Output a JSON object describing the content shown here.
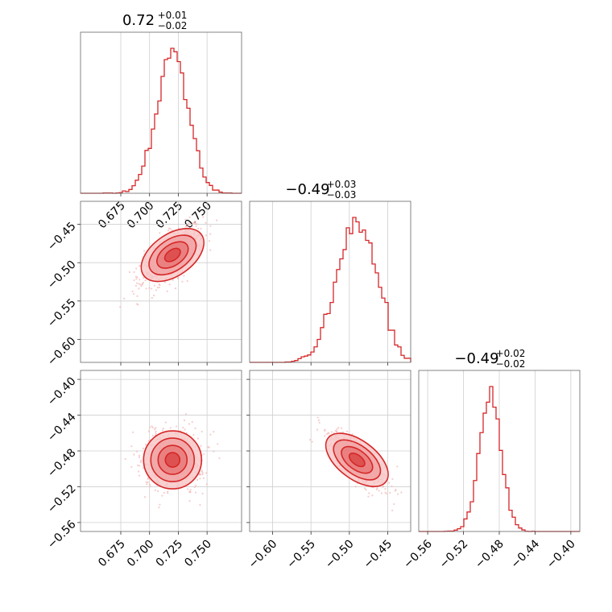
{
  "chart_data": [
    {
      "type": "histogram",
      "panel": "hist-0",
      "title": {
        "main": "0.72",
        "sup": "+0.01",
        "sub": "−0.02"
      },
      "xlim": [
        0.64,
        0.78
      ],
      "xticks": [
        0.675,
        0.7,
        0.725,
        0.75
      ],
      "xticklabels": [
        "0.675",
        "0.700",
        "0.725",
        "0.750"
      ],
      "center": 0.72,
      "spread": 0.0138,
      "peak": 0.03,
      "color": "#d62728",
      "grid": true
    },
    {
      "type": "scatter",
      "panel": "joint-1-0",
      "xlim": [
        0.64,
        0.78
      ],
      "ylim": [
        -0.63,
        -0.42
      ],
      "xticks": [
        0.675,
        0.7,
        0.725,
        0.75
      ],
      "yticks": [
        -0.45,
        -0.5,
        -0.55,
        -0.6
      ],
      "yticklabels": [
        "−0.45",
        "−0.50",
        "−0.55",
        "−0.60"
      ],
      "center": [
        0.72,
        -0.49
      ],
      "correlation": 0.7,
      "color": "#d62728",
      "grid": true
    },
    {
      "type": "histogram",
      "panel": "hist-1",
      "title": {
        "main": "−0.49",
        "sup": "+0.03",
        "sub": "−0.03"
      },
      "xlim": [
        -0.63,
        -0.42
      ],
      "xticks": [
        -0.6,
        -0.55,
        -0.5,
        -0.45
      ],
      "center": -0.49,
      "spread": 0.026,
      "peak": 0.016,
      "color": "#d62728",
      "grid": true
    },
    {
      "type": "scatter",
      "panel": "joint-2-0",
      "xlim": [
        0.64,
        0.78
      ],
      "ylim": [
        -0.57,
        -0.39
      ],
      "xticks": [
        0.675,
        0.7,
        0.725,
        0.75
      ],
      "xticklabels": [
        "0.675",
        "0.700",
        "0.725",
        "0.750"
      ],
      "yticks": [
        -0.4,
        -0.44,
        -0.48,
        -0.52,
        -0.56
      ],
      "yticklabels": [
        "−0.40",
        "−0.44",
        "−0.48",
        "−0.52",
        "−0.56"
      ],
      "center": [
        0.72,
        -0.49
      ],
      "correlation": 0.0,
      "color": "#d62728",
      "grid": true
    },
    {
      "type": "scatter",
      "panel": "joint-2-1",
      "xlim": [
        -0.63,
        -0.42
      ],
      "ylim": [
        -0.57,
        -0.39
      ],
      "xticks": [
        -0.6,
        -0.55,
        -0.5,
        -0.45
      ],
      "xticklabels": [
        "−0.60",
        "−0.55",
        "−0.50",
        "−0.45"
      ],
      "yticks": [
        -0.4,
        -0.44,
        -0.48,
        -0.52,
        -0.56
      ],
      "center": [
        -0.49,
        -0.49
      ],
      "correlation": -0.75,
      "color": "#d62728",
      "grid": true
    },
    {
      "type": "histogram",
      "panel": "hist-2",
      "title": {
        "main": "−0.49",
        "sup": "+0.02",
        "sub": "−0.02"
      },
      "xlim": [
        -0.57,
        -0.39
      ],
      "xticks": [
        -0.56,
        -0.52,
        -0.48,
        -0.44,
        -0.4
      ],
      "xticklabels": [
        "−0.56",
        "−0.52",
        "−0.48",
        "−0.44",
        "−0.40"
      ],
      "center": -0.49,
      "spread": 0.012,
      "peak": 0.03,
      "color": "#d62728",
      "grid": true
    }
  ]
}
